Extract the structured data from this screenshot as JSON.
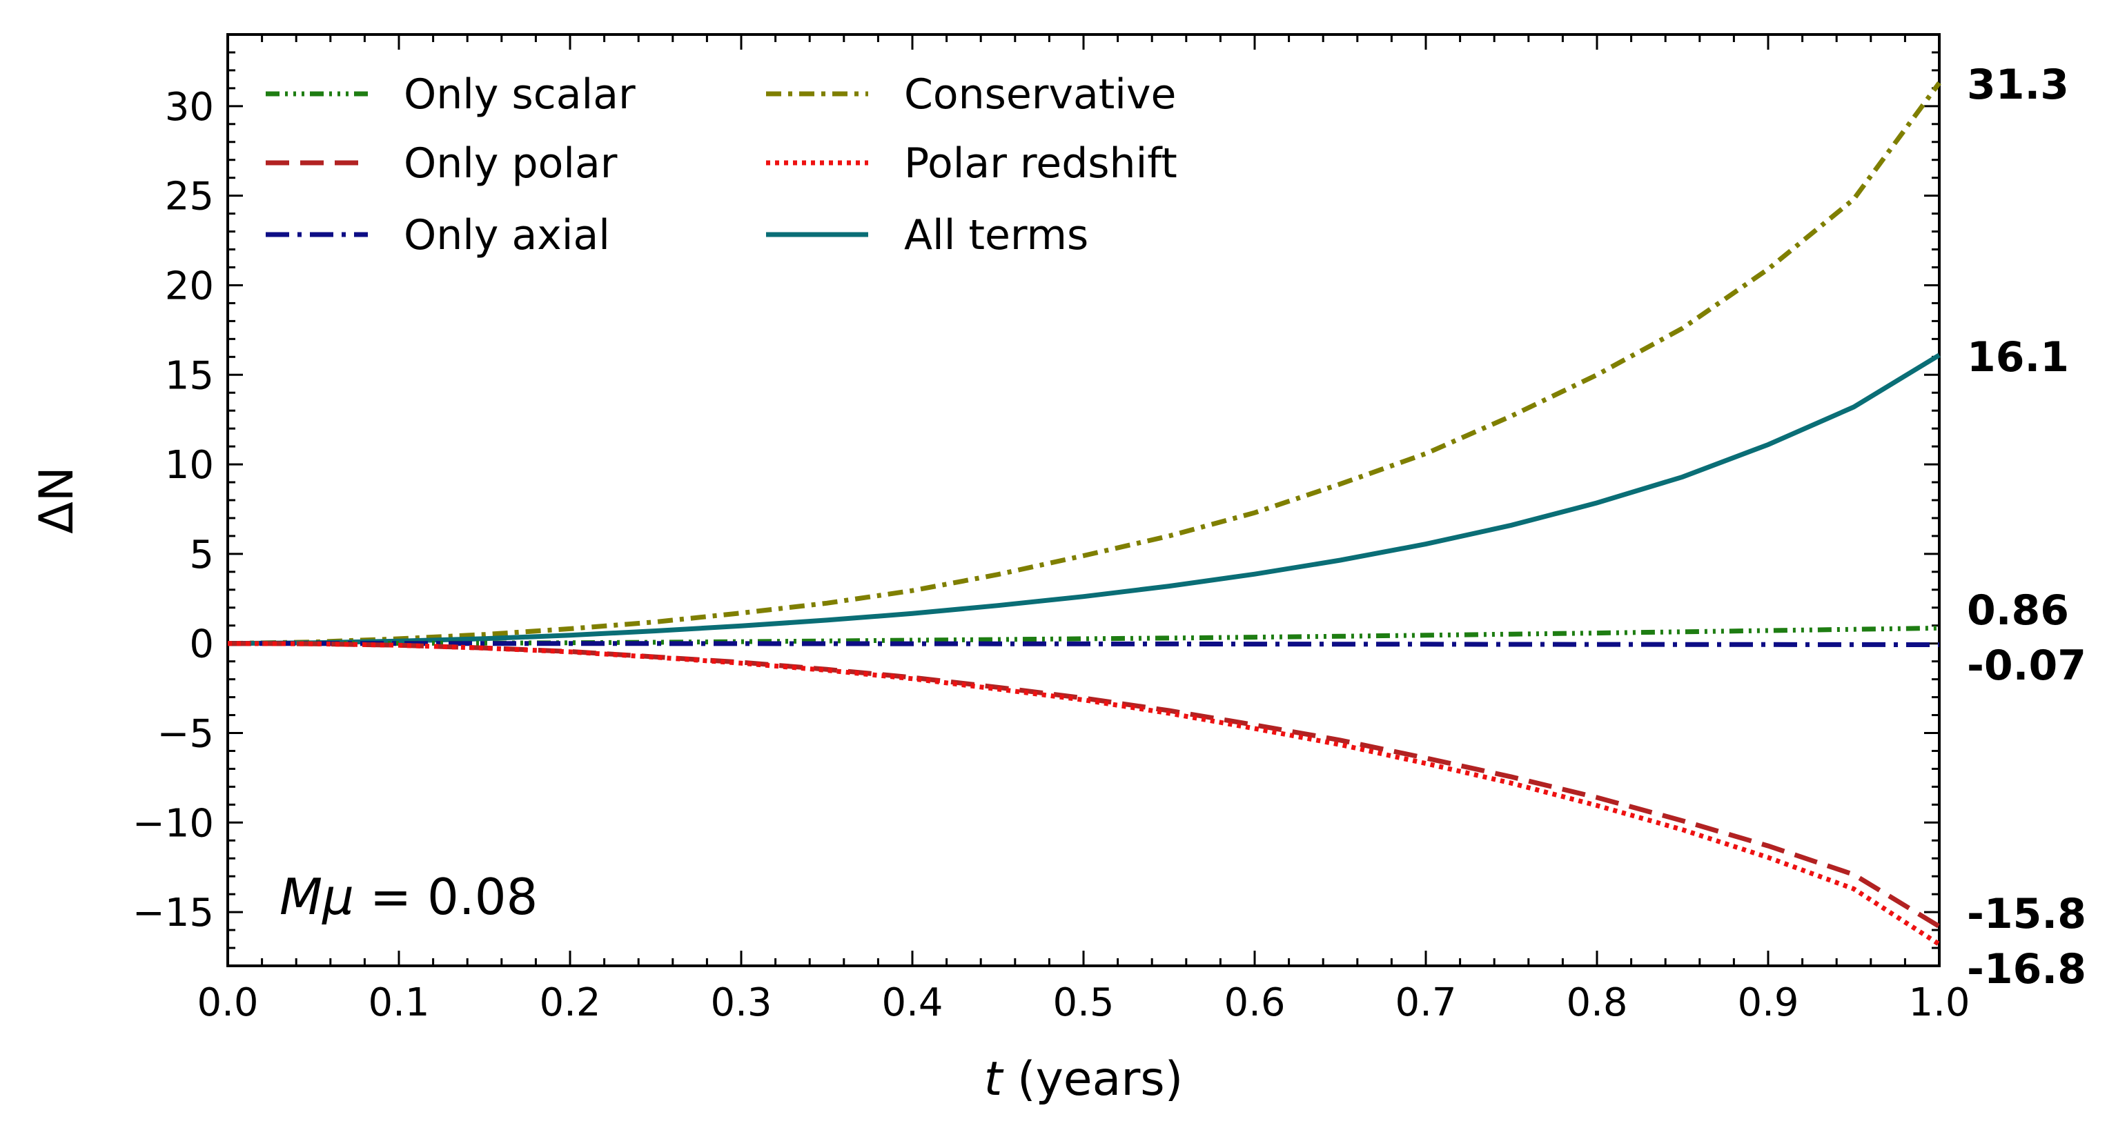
{
  "chart_data": {
    "type": "line",
    "xlabel_italic": "t",
    "xlabel_rest": " (years)",
    "ylabel": "ΔN",
    "xlim": [
      0,
      1
    ],
    "ylim": [
      -18,
      34
    ],
    "x_ticks": [
      "0.0",
      "0.1",
      "0.2",
      "0.3",
      "0.4",
      "0.5",
      "0.6",
      "0.7",
      "0.8",
      "0.9",
      "1.0"
    ],
    "x_tick_values": [
      0,
      0.1,
      0.2,
      0.3,
      0.4,
      0.5,
      0.6,
      0.7,
      0.8,
      0.9,
      1.0
    ],
    "y_ticks": [
      "30",
      "25",
      "20",
      "15",
      "10",
      "5",
      "0",
      "−5",
      "−10",
      "−15"
    ],
    "y_tick_values": [
      30,
      25,
      20,
      15,
      10,
      5,
      0,
      -5,
      -10,
      -15
    ],
    "legend_position": "top-left",
    "annotation": {
      "lhs": "Mμ",
      "rhs": " = 0.08"
    },
    "x": [
      0,
      0.05,
      0.1,
      0.15,
      0.2,
      0.25,
      0.3,
      0.35,
      0.4,
      0.45,
      0.5,
      0.55,
      0.6,
      0.65,
      0.7,
      0.75,
      0.8,
      0.85,
      0.9,
      0.95,
      1.0
    ],
    "series": [
      {
        "name": "Only scalar",
        "key": "scalar",
        "color": "#1e7d12",
        "dash": "20 8 4 8 4 8 4 8",
        "end_label": "0.86",
        "values": [
          0,
          0.001,
          0.007,
          0.02,
          0.04,
          0.066,
          0.1,
          0.14,
          0.18,
          0.22,
          0.26,
          0.3,
          0.35,
          0.4,
          0.46,
          0.52,
          0.58,
          0.65,
          0.72,
          0.79,
          0.86
        ]
      },
      {
        "name": "Only polar",
        "key": "polar",
        "color": "#b22222",
        "dash": "34 16",
        "end_label": "-15.8",
        "values": [
          0,
          -0.02,
          -0.1,
          -0.25,
          -0.45,
          -0.75,
          -1.05,
          -1.45,
          -1.9,
          -2.45,
          -3.05,
          -3.75,
          -4.55,
          -5.4,
          -6.4,
          -7.45,
          -8.6,
          -9.9,
          -11.3,
          -12.9,
          -15.8
        ]
      },
      {
        "name": "Only axial",
        "key": "axial",
        "color": "#0d0d85",
        "dash": "34 12 6 12",
        "end_label": "-0.07",
        "values": [
          0,
          0,
          -0.001,
          -0.002,
          -0.004,
          -0.006,
          -0.009,
          -0.012,
          -0.016,
          -0.02,
          -0.025,
          -0.029,
          -0.034,
          -0.039,
          -0.044,
          -0.049,
          -0.054,
          -0.059,
          -0.063,
          -0.067,
          -0.07
        ]
      },
      {
        "name": "Conservative",
        "key": "conservative",
        "color": "#7f7f00",
        "dash": "22 10 6 10",
        "end_label": "31.3",
        "values": [
          0,
          0.08,
          0.26,
          0.5,
          0.82,
          1.2,
          1.7,
          2.25,
          2.95,
          3.85,
          4.9,
          6.0,
          7.3,
          8.9,
          10.6,
          12.7,
          15.0,
          17.6,
          20.9,
          24.8,
          31.3
        ]
      },
      {
        "name": "Polar redshift",
        "key": "redshift",
        "color": "#ee1111",
        "dash": "6 7",
        "end_label": "-16.8",
        "values": [
          0,
          -0.02,
          -0.1,
          -0.26,
          -0.47,
          -0.77,
          -1.1,
          -1.5,
          -1.97,
          -2.55,
          -3.15,
          -3.9,
          -4.75,
          -5.65,
          -6.7,
          -7.8,
          -9.05,
          -10.4,
          -11.95,
          -13.7,
          -16.8
        ]
      },
      {
        "name": "All terms",
        "key": "all",
        "color": "#0a6e76",
        "dash": "",
        "end_label": "16.1",
        "values": [
          0,
          0.04,
          0.13,
          0.27,
          0.46,
          0.7,
          0.98,
          1.3,
          1.67,
          2.12,
          2.62,
          3.2,
          3.87,
          4.65,
          5.55,
          6.6,
          7.85,
          9.3,
          11.1,
          13.2,
          16.1
        ]
      }
    ],
    "legend_order": [
      "scalar",
      "polar",
      "axial",
      "conservative",
      "redshift",
      "all"
    ]
  }
}
